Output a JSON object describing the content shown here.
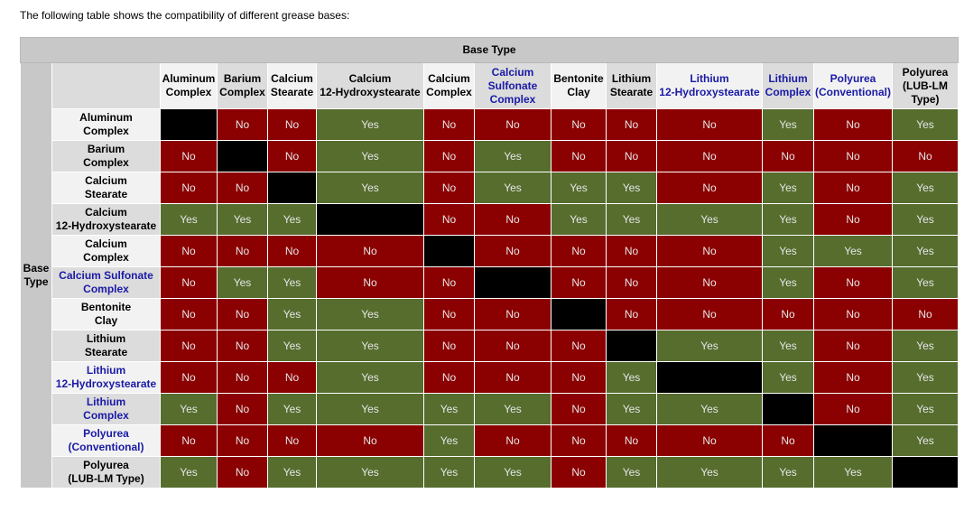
{
  "intro": "The following table shows the compatibility of different grease bases:",
  "table": {
    "title": "Base Type",
    "row_group_label": "Base Type",
    "columns": [
      {
        "label": "Aluminum\nComplex",
        "link": false
      },
      {
        "label": "Barium\nComplex",
        "link": false
      },
      {
        "label": "Calcium\nStearate",
        "link": false
      },
      {
        "label": "Calcium\n12-Hydroxystearate",
        "link": false
      },
      {
        "label": "Calcium\nComplex",
        "link": false
      },
      {
        "label": "Calcium\nSulfonate\nComplex",
        "link": true
      },
      {
        "label": "Bentonite\nClay",
        "link": false
      },
      {
        "label": "Lithium\nStearate",
        "link": false
      },
      {
        "label": "Lithium\n12-Hydroxystearate",
        "link": true
      },
      {
        "label": "Lithium\nComplex",
        "link": true
      },
      {
        "label": "Polyurea\n(Conventional)",
        "link": true
      },
      {
        "label": "Polyurea\n(LUB-LM\nType)",
        "link": false
      }
    ],
    "rows": [
      {
        "label": "Aluminum\nComplex",
        "link": false,
        "cells": [
          null,
          "No",
          "No",
          "Yes",
          "No",
          "No",
          "No",
          "No",
          "No",
          "Yes",
          "No",
          "Yes"
        ]
      },
      {
        "label": "Barium\nComplex",
        "link": false,
        "cells": [
          "No",
          null,
          "No",
          "Yes",
          "No",
          "Yes",
          "No",
          "No",
          "No",
          "No",
          "No",
          "No"
        ]
      },
      {
        "label": "Calcium\nStearate",
        "link": false,
        "cells": [
          "No",
          "No",
          null,
          "Yes",
          "No",
          "Yes",
          "Yes",
          "Yes",
          "No",
          "Yes",
          "No",
          "Yes"
        ]
      },
      {
        "label": "Calcium\n12-Hydroxystearate",
        "link": false,
        "cells": [
          "Yes",
          "Yes",
          "Yes",
          null,
          "No",
          "No",
          "Yes",
          "Yes",
          "Yes",
          "Yes",
          "No",
          "Yes"
        ]
      },
      {
        "label": "Calcium\nComplex",
        "link": false,
        "cells": [
          "No",
          "No",
          "No",
          "No",
          null,
          "No",
          "No",
          "No",
          "No",
          "Yes",
          "Yes",
          "Yes"
        ]
      },
      {
        "label": "Calcium Sulfonate\nComplex",
        "link": true,
        "cells": [
          "No",
          "Yes",
          "Yes",
          "No",
          "No",
          null,
          "No",
          "No",
          "No",
          "Yes",
          "No",
          "Yes"
        ]
      },
      {
        "label": "Bentonite\nClay",
        "link": false,
        "cells": [
          "No",
          "No",
          "Yes",
          "Yes",
          "No",
          "No",
          null,
          "No",
          "No",
          "No",
          "No",
          "No"
        ]
      },
      {
        "label": "Lithium\nStearate",
        "link": false,
        "cells": [
          "No",
          "No",
          "Yes",
          "Yes",
          "No",
          "No",
          "No",
          null,
          "Yes",
          "Yes",
          "No",
          "Yes"
        ]
      },
      {
        "label": "Lithium\n12-Hydroxystearate",
        "link": true,
        "cells": [
          "No",
          "No",
          "No",
          "Yes",
          "No",
          "No",
          "No",
          "Yes",
          null,
          "Yes",
          "No",
          "Yes"
        ]
      },
      {
        "label": "Lithium\nComplex",
        "link": true,
        "cells": [
          "Yes",
          "No",
          "Yes",
          "Yes",
          "Yes",
          "Yes",
          "No",
          "Yes",
          "Yes",
          null,
          "No",
          "Yes"
        ]
      },
      {
        "label": "Polyurea\n(Conventional)",
        "link": true,
        "cells": [
          "No",
          "No",
          "No",
          "No",
          "Yes",
          "No",
          "No",
          "No",
          "No",
          "No",
          null,
          "Yes"
        ]
      },
      {
        "label": "Polyurea\n(LUB-LM Type)",
        "link": false,
        "cells": [
          "Yes",
          "No",
          "Yes",
          "Yes",
          "Yes",
          "Yes",
          "No",
          "Yes",
          "Yes",
          "Yes",
          "Yes",
          null
        ]
      }
    ]
  }
}
